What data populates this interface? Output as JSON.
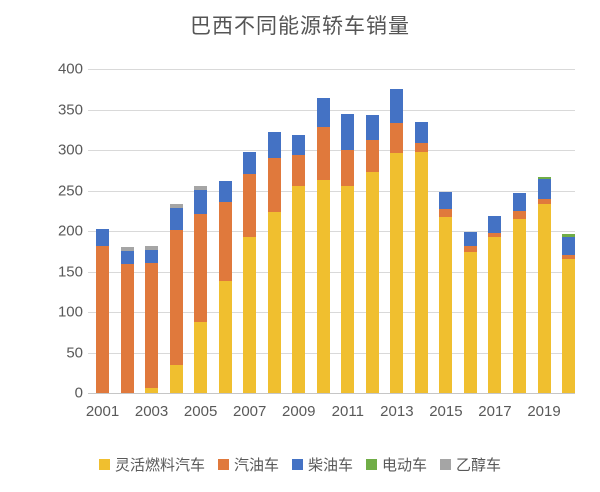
{
  "title": "巴西不同能源轿车销量",
  "colors": {
    "flex_fuel": "#F0BF2F",
    "gasoline": "#E0793C",
    "diesel": "#4472C4",
    "electric": "#70AD47",
    "ethanol": "#A5A5A5",
    "gridline": "#D9D9D9",
    "axis_text": "#595959",
    "title_text": "#555555"
  },
  "chart_data": {
    "type": "bar",
    "stacked": true,
    "title": "巴西不同能源轿车销量",
    "categories": [
      "2001",
      "2002",
      "2003",
      "2004",
      "2005",
      "2006",
      "2007",
      "2008",
      "2009",
      "2010",
      "2011",
      "2012",
      "2013",
      "2014",
      "2015",
      "2016",
      "2017",
      "2018",
      "2019",
      "2020"
    ],
    "x_tick_labels": [
      "2001",
      "2003",
      "2005",
      "2007",
      "2009",
      "2011",
      "2013",
      "2015",
      "2017",
      "2019"
    ],
    "series": [
      {
        "id": "flex-fuel",
        "name": "灵活燃料汽车",
        "color": "#F0BF2F",
        "values": [
          0,
          0,
          6,
          34,
          88,
          138,
          193,
          224,
          256,
          263,
          255,
          273,
          296,
          298,
          217,
          174,
          192,
          215,
          233,
          166
        ]
      },
      {
        "id": "gasoline",
        "name": "汽油车",
        "color": "#E0793C",
        "values": [
          181,
          159,
          155,
          167,
          133,
          98,
          77,
          66,
          38,
          66,
          45,
          39,
          37,
          11,
          10,
          7,
          5,
          10,
          7,
          5
        ]
      },
      {
        "id": "diesel",
        "name": "柴油车",
        "color": "#4472C4",
        "values": [
          21,
          16,
          16,
          27,
          30,
          26,
          28,
          32,
          24,
          35,
          45,
          31,
          42,
          25,
          21,
          18,
          21,
          22,
          24,
          22
        ]
      },
      {
        "id": "electric",
        "name": "电动车",
        "color": "#70AD47",
        "values": [
          0,
          0,
          0,
          0,
          0,
          0,
          0,
          0,
          0,
          0,
          0,
          0,
          0,
          0,
          0,
          0,
          0,
          0,
          3,
          3
        ]
      },
      {
        "id": "ethanol",
        "name": "乙醇车",
        "color": "#A5A5A5",
        "values": [
          0,
          5,
          5,
          5,
          4,
          0,
          0,
          0,
          0,
          0,
          0,
          0,
          0,
          0,
          0,
          0,
          0,
          0,
          0,
          0
        ]
      }
    ],
    "ylabel": "",
    "xlabel": "",
    "ylim": [
      0,
      400
    ],
    "y_ticks": [
      0,
      50,
      100,
      150,
      200,
      250,
      300,
      350,
      400
    ],
    "grid": true,
    "legend_position": "bottom"
  }
}
